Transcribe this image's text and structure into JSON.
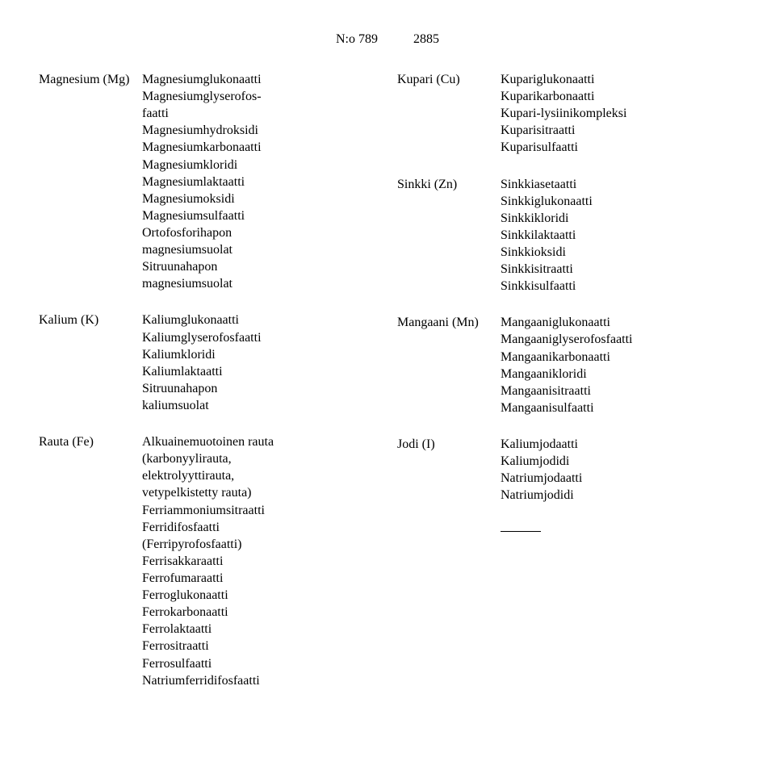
{
  "header": {
    "docnum": "N:o 789",
    "page": "2885"
  },
  "left": {
    "mg": {
      "label": "Magnesium (Mg)",
      "items": [
        "Magnesiumglukonaatti",
        "Magnesiumglyserofos-",
        "faatti",
        "Magnesiumhydroksidi",
        "Magnesiumkarbonaatti",
        "Magnesiumkloridi",
        "Magnesiumlaktaatti",
        "Magnesiumoksidi",
        "Magnesiumsulfaatti",
        "Ortofosforihapon",
        "magnesiumsuolat",
        "Sitruunahapon",
        "magnesiumsuolat"
      ]
    },
    "k": {
      "label": "Kalium (K)",
      "items": [
        "Kaliumglukonaatti",
        "Kaliumglyserofosfaatti",
        "Kaliumkloridi",
        "Kaliumlaktaatti",
        "Sitruunahapon",
        "kaliumsuolat"
      ]
    },
    "fe": {
      "label": "Rauta (Fe)",
      "items": [
        "Alkuainemuotoinen rauta",
        "(karbonyylirauta,",
        "elektrolyyttirauta,",
        "vetypelkistetty rauta)",
        "Ferriammoniumsitraatti",
        "Ferridifosfaatti",
        "(Ferripyrofosfaatti)",
        "Ferrisakkaraatti",
        "Ferrofumaraatti",
        "Ferroglukonaatti",
        "Ferrokarbonaatti",
        "Ferrolaktaatti",
        "Ferrositraatti",
        "Ferrosulfaatti",
        "Natriumferridifosfaatti"
      ]
    }
  },
  "right": {
    "cu": {
      "label": "Kupari (Cu)",
      "items": [
        "Kupariglukonaatti",
        "Kuparikarbonaatti",
        "Kupari-lysiinikompleksi",
        "Kuparisitraatti",
        "Kuparisulfaatti"
      ]
    },
    "zn": {
      "label": "Sinkki (Zn)",
      "items": [
        "Sinkkiasetaatti",
        "Sinkkiglukonaatti",
        "Sinkkikloridi",
        "Sinkkilaktaatti",
        "Sinkkioksidi",
        "Sinkkisitraatti",
        "Sinkkisulfaatti"
      ]
    },
    "mn": {
      "label": "Mangaani (Mn)",
      "items": [
        "Mangaaniglukonaatti",
        "Mangaaniglyserofosfaatti",
        "Mangaanikarbonaatti",
        "Mangaanikloridi",
        "Mangaanisitraatti",
        "Mangaanisulfaatti"
      ]
    },
    "i": {
      "label": "Jodi (I)",
      "items": [
        "Kaliumjodaatti",
        "Kaliumjodidi",
        "Natriumjodaatti",
        "Natriumjodidi"
      ]
    }
  }
}
